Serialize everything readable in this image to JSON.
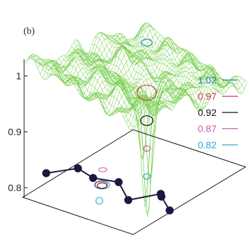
{
  "panel_label": "(b)",
  "chart_data": {
    "type": "surface",
    "title": "",
    "xlabel": "",
    "ylabel": "",
    "zlabel": "",
    "zlim": [
      0.8,
      1.0
    ],
    "z_ticks": [
      "0.8",
      "0.9",
      "1"
    ],
    "z_tick_values": [
      0.8,
      0.9,
      1.0
    ],
    "grid": false,
    "legend_position": "right",
    "contour_levels": [
      {
        "label": "1.02",
        "value": 1.02,
        "color": "#1f7fc0"
      },
      {
        "label": "0.97",
        "value": 0.97,
        "color": "#d2384a"
      },
      {
        "label": "0.92",
        "value": 0.92,
        "color": "#111111"
      },
      {
        "label": "0.87",
        "value": 0.87,
        "color": "#d05aa8"
      },
      {
        "label": "0.82",
        "value": 0.82,
        "color": "#2aa6d6"
      }
    ],
    "surface_color": "#7ccf52",
    "path_marker_color": "#1a1840",
    "path_point_count": 8
  }
}
